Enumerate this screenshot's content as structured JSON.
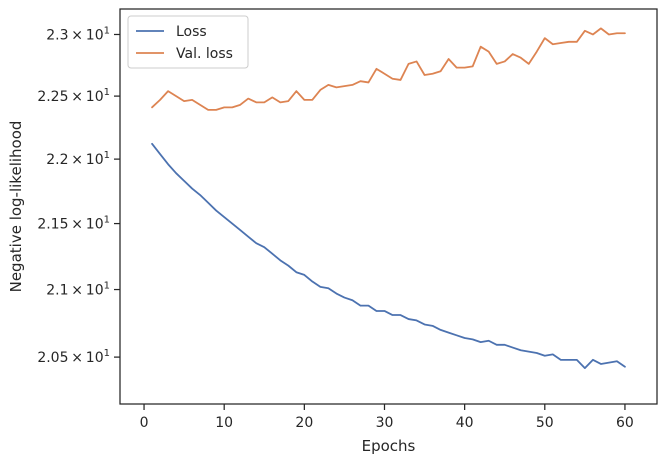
{
  "chart_data": {
    "type": "line",
    "xlabel": "Epochs",
    "ylabel": "Negative log-likelihood",
    "xlim": [
      -3,
      64
    ],
    "ylim": [
      20.16,
      23.21
    ],
    "y_scale": "log",
    "grid": false,
    "legend_position": "top-left",
    "x_ticks": [
      {
        "value": 0,
        "label": "0"
      },
      {
        "value": 10,
        "label": "10"
      },
      {
        "value": 20,
        "label": "20"
      },
      {
        "value": 30,
        "label": "30"
      },
      {
        "value": 40,
        "label": "40"
      },
      {
        "value": 50,
        "label": "50"
      },
      {
        "value": 60,
        "label": "60"
      }
    ],
    "y_ticks": [
      {
        "value": 20.5,
        "mantissa": "2.05",
        "exp": "1"
      },
      {
        "value": 21.0,
        "mantissa": "2.1",
        "exp": "1"
      },
      {
        "value": 21.5,
        "mantissa": "2.15",
        "exp": "1"
      },
      {
        "value": 22.0,
        "mantissa": "2.2",
        "exp": "1"
      },
      {
        "value": 22.5,
        "mantissa": "2.25",
        "exp": "1"
      },
      {
        "value": 23.0,
        "mantissa": "2.3",
        "exp": "1"
      }
    ],
    "x": [
      1,
      2,
      3,
      4,
      5,
      6,
      7,
      8,
      9,
      10,
      11,
      12,
      13,
      14,
      15,
      16,
      17,
      18,
      19,
      20,
      21,
      22,
      23,
      24,
      25,
      26,
      27,
      28,
      29,
      30,
      31,
      32,
      33,
      34,
      35,
      36,
      37,
      38,
      39,
      40,
      41,
      42,
      43,
      44,
      45,
      46,
      47,
      48,
      49,
      50,
      51,
      52,
      53,
      54,
      55,
      56,
      57,
      58,
      59,
      60
    ],
    "series": [
      {
        "name": "Loss",
        "color": "#4c72b0",
        "values": [
          22.12,
          22.04,
          21.96,
          21.89,
          21.83,
          21.77,
          21.72,
          21.66,
          21.6,
          21.55,
          21.5,
          21.45,
          21.4,
          21.35,
          21.32,
          21.27,
          21.22,
          21.18,
          21.13,
          21.11,
          21.06,
          21.02,
          21.01,
          20.97,
          20.94,
          20.92,
          20.88,
          20.88,
          20.84,
          20.84,
          20.81,
          20.81,
          20.78,
          20.77,
          20.74,
          20.73,
          20.7,
          20.68,
          20.66,
          20.64,
          20.63,
          20.61,
          20.62,
          20.59,
          20.59,
          20.57,
          20.55,
          20.54,
          20.53,
          20.51,
          20.52,
          20.48,
          20.48,
          20.48,
          20.42,
          20.48,
          20.45,
          20.46,
          20.47,
          20.43
        ]
      },
      {
        "name": "Val. loss",
        "color": "#dd8452",
        "values": [
          22.41,
          22.47,
          22.54,
          22.5,
          22.46,
          22.47,
          22.43,
          22.39,
          22.39,
          22.41,
          22.41,
          22.43,
          22.48,
          22.45,
          22.45,
          22.49,
          22.45,
          22.46,
          22.54,
          22.47,
          22.47,
          22.55,
          22.59,
          22.57,
          22.58,
          22.59,
          22.62,
          22.61,
          22.72,
          22.68,
          22.64,
          22.63,
          22.76,
          22.78,
          22.67,
          22.68,
          22.7,
          22.8,
          22.73,
          22.73,
          22.74,
          22.9,
          22.86,
          22.76,
          22.78,
          22.84,
          22.81,
          22.76,
          22.86,
          22.97,
          22.92,
          22.93,
          22.94,
          22.94,
          23.03,
          23.0,
          23.05,
          23.0,
          23.01,
          23.01
        ]
      }
    ]
  }
}
